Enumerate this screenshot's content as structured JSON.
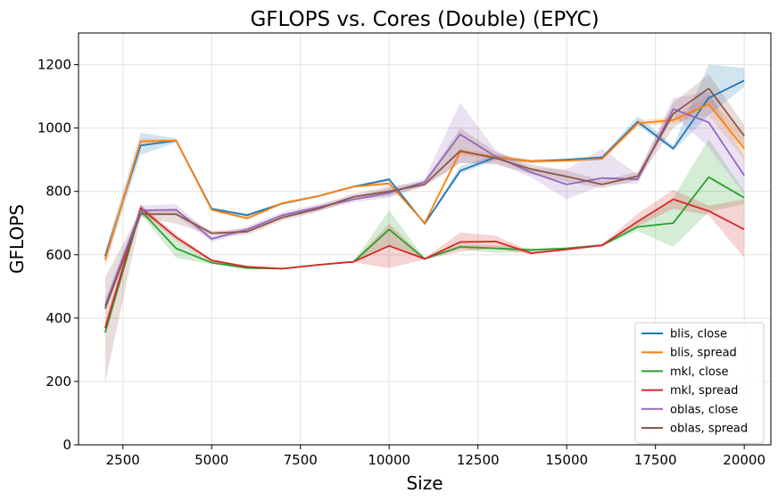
{
  "chart_data": {
    "type": "line",
    "title": "GFLOPS vs. Cores (Double) (EPYC)",
    "xlabel": "Size",
    "ylabel": "GFLOPS",
    "xlim": [
      1250,
      20750
    ],
    "ylim": [
      0,
      1300
    ],
    "xticks": [
      2500,
      5000,
      7500,
      10000,
      12500,
      15000,
      17500,
      20000
    ],
    "yticks": [
      0,
      200,
      400,
      600,
      800,
      1000,
      1200
    ],
    "grid": true,
    "legend_position": "lower-right",
    "x": [
      2000,
      3000,
      4000,
      5000,
      6000,
      7000,
      8000,
      9000,
      10000,
      11000,
      12000,
      13000,
      14000,
      15000,
      16000,
      17000,
      18000,
      19000,
      20000
    ],
    "series": [
      {
        "name": "blis, close",
        "color": "#1f77b4",
        "values": [
          595,
          945,
          960,
          745,
          725,
          762,
          785,
          815,
          838,
          698,
          865,
          908,
          895,
          900,
          907,
          1020,
          935,
          1095,
          1150
        ],
        "band_lower": [
          570,
          915,
          955,
          740,
          720,
          758,
          782,
          812,
          832,
          696,
          855,
          900,
          890,
          896,
          902,
          1008,
          928,
          1040,
          1130
        ],
        "band_upper": [
          615,
          985,
          968,
          750,
          730,
          766,
          788,
          818,
          842,
          700,
          880,
          916,
          900,
          904,
          912,
          1038,
          945,
          1200,
          1190
        ]
      },
      {
        "name": "blis, spread",
        "color": "#ff7f0e",
        "values": [
          585,
          958,
          960,
          742,
          715,
          763,
          785,
          815,
          825,
          700,
          925,
          908,
          895,
          897,
          903,
          1015,
          1025,
          1075,
          935
        ],
        "band_lower": [
          560,
          950,
          955,
          738,
          710,
          759,
          782,
          812,
          820,
          698,
          915,
          900,
          890,
          893,
          898,
          1005,
          1015,
          1040,
          900
        ],
        "band_upper": [
          605,
          966,
          965,
          746,
          720,
          767,
          788,
          818,
          830,
          702,
          935,
          916,
          900,
          901,
          908,
          1025,
          1035,
          1105,
          975
        ]
      },
      {
        "name": "mkl, close",
        "color": "#2ca02c",
        "values": [
          355,
          740,
          620,
          575,
          558,
          556,
          568,
          578,
          680,
          587,
          625,
          620,
          615,
          620,
          630,
          688,
          700,
          845,
          780
        ],
        "band_lower": [
          345,
          730,
          590,
          570,
          555,
          554,
          566,
          576,
          630,
          585,
          618,
          605,
          610,
          616,
          626,
          675,
          625,
          735,
          760
        ],
        "band_upper": [
          375,
          760,
          650,
          580,
          561,
          558,
          570,
          580,
          740,
          590,
          632,
          630,
          620,
          624,
          634,
          700,
          780,
          965,
          800
        ]
      },
      {
        "name": "mkl, spread",
        "color": "#d62728",
        "values": [
          368,
          748,
          655,
          582,
          562,
          556,
          568,
          578,
          628,
          587,
          640,
          642,
          605,
          617,
          630,
          705,
          775,
          738,
          680
        ],
        "band_lower": [
          350,
          738,
          645,
          578,
          559,
          554,
          566,
          576,
          558,
          585,
          610,
          620,
          600,
          613,
          626,
          690,
          745,
          725,
          590
        ],
        "band_upper": [
          390,
          758,
          665,
          586,
          565,
          558,
          570,
          580,
          698,
          590,
          670,
          660,
          610,
          621,
          634,
          730,
          805,
          755,
          775
        ]
      },
      {
        "name": "oblas, close",
        "color": "#9467bd",
        "values": [
          440,
          740,
          742,
          650,
          680,
          725,
          750,
          775,
          795,
          830,
          980,
          910,
          860,
          822,
          842,
          838,
          1060,
          1018,
          850
        ],
        "band_lower": [
          420,
          725,
          725,
          640,
          670,
          715,
          740,
          765,
          780,
          820,
          890,
          890,
          845,
          775,
          820,
          825,
          1040,
          940,
          790
        ],
        "band_upper": [
          460,
          755,
          760,
          660,
          690,
          735,
          760,
          785,
          810,
          840,
          1080,
          930,
          875,
          870,
          935,
          852,
          1095,
          1115,
          910
        ]
      },
      {
        "name": "oblas, spread",
        "color": "#8c564b",
        "values": [
          430,
          728,
          728,
          668,
          673,
          718,
          745,
          783,
          800,
          822,
          928,
          905,
          870,
          847,
          822,
          848,
          1045,
          1125,
          975
        ],
        "band_lower": [
          195,
          718,
          698,
          662,
          663,
          708,
          735,
          773,
          785,
          815,
          890,
          885,
          855,
          830,
          810,
          835,
          1000,
          1080,
          940
        ],
        "band_upper": [
          530,
          738,
          740,
          675,
          683,
          728,
          755,
          793,
          815,
          830,
          1000,
          925,
          885,
          865,
          835,
          862,
          1080,
          1170,
          1010
        ]
      }
    ]
  }
}
